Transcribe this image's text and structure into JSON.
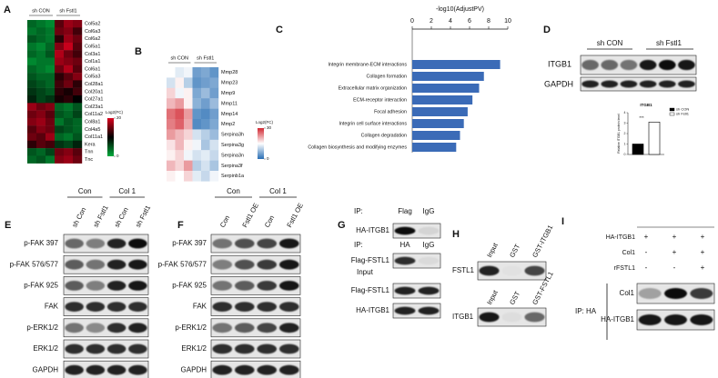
{
  "panel_a": {
    "label": "A",
    "groups": [
      "sh CON",
      "sh Fstl1"
    ],
    "rows": [
      "Col5a2",
      "Col6a3",
      "Col6a2",
      "Col5a1",
      "Col3a1",
      "Col1a1",
      "Col6a1",
      "Col5a3",
      "Col28a1",
      "Col20a1",
      "Col27a1",
      "Col23a1",
      "Col11a2",
      "Col8a1",
      "Col4a5",
      "Col11a1",
      "Kera",
      "Tnn",
      "Tnc"
    ],
    "values": [
      [
        4,
        3,
        2,
        14,
        17,
        16
      ],
      [
        3,
        4,
        3,
        15,
        16,
        13
      ],
      [
        5,
        4,
        3,
        12,
        17,
        15
      ],
      [
        3,
        2,
        4,
        16,
        19,
        14
      ],
      [
        4,
        3,
        5,
        18,
        15,
        13
      ],
      [
        2,
        3,
        3,
        17,
        16,
        15
      ],
      [
        4,
        3,
        2,
        15,
        18,
        14
      ],
      [
        5,
        4,
        4,
        12,
        14,
        16
      ],
      [
        6,
        5,
        4,
        13,
        15,
        12
      ],
      [
        7,
        6,
        5,
        12,
        11,
        13
      ],
      [
        8,
        6,
        7,
        11,
        12,
        10
      ],
      [
        17,
        15,
        16,
        4,
        3,
        5
      ],
      [
        15,
        16,
        14,
        5,
        4,
        6
      ],
      [
        16,
        17,
        15,
        3,
        5,
        4
      ],
      [
        14,
        16,
        15,
        6,
        5,
        4
      ],
      [
        15,
        14,
        17,
        4,
        3,
        5
      ],
      [
        12,
        14,
        13,
        7,
        6,
        8
      ],
      [
        5,
        4,
        6,
        15,
        16,
        14
      ],
      [
        4,
        5,
        3,
        16,
        17,
        15
      ]
    ],
    "colorbar": {
      "title": "Log2(FC)",
      "lim": [
        0,
        20
      ],
      "ticks": [
        20,
        0
      ]
    }
  },
  "panel_b": {
    "label": "B",
    "groups": [
      "sh CON",
      "sh Fstl1"
    ],
    "rows": [
      "Mmp28",
      "Mmp23",
      "Mmp9",
      "Mmp11",
      "Mmp14",
      "Mmp2",
      "Serpina3h",
      "Serpina3g",
      "Serpina3n",
      "Serpina3f",
      "Serpinb1a"
    ],
    "values": [
      [
        15,
        13,
        14,
        5,
        6,
        4
      ],
      [
        12,
        16,
        10,
        4,
        5,
        6
      ],
      [
        18,
        14,
        16,
        6,
        8,
        5
      ],
      [
        20,
        22,
        16,
        7,
        5,
        8
      ],
      [
        25,
        27,
        22,
        4,
        3,
        5
      ],
      [
        24,
        26,
        21,
        3,
        4,
        6
      ],
      [
        22,
        20,
        18,
        12,
        10,
        8
      ],
      [
        17,
        20,
        16,
        14,
        9,
        12
      ],
      [
        16,
        18,
        14,
        12,
        13,
        11
      ],
      [
        20,
        18,
        22,
        10,
        12,
        9
      ],
      [
        16,
        15,
        18,
        13,
        11,
        14
      ]
    ],
    "colorbar": {
      "title": "Log2(FC)",
      "lim": [
        0,
        30
      ],
      "ticks": [
        30,
        0
      ]
    }
  },
  "panel_c": {
    "label": "C",
    "type": "bar",
    "title": "-log10(AdjustPV)",
    "categories": [
      "Integrin membrane-ECM interactions",
      "Collagen formation",
      "Extracellular matrix organization",
      "ECM-receptor interaction",
      "Focal adhesion",
      "Integrin cell surface interactions",
      "Collagen degradation",
      "Collagen biosynthesis and modifying enzymes"
    ],
    "values": [
      9.2,
      7.5,
      7.0,
      6.3,
      5.8,
      5.4,
      5.0,
      4.6
    ],
    "xlim": [
      0,
      10
    ],
    "xticks": [
      0,
      2,
      4,
      6,
      8,
      10
    ],
    "color": "#3b6bb7"
  },
  "panel_d": {
    "label": "D",
    "groups": [
      "sh CON",
      "sh Fstl1"
    ],
    "blot_rows": [
      "ITGB1",
      "GAPDH"
    ],
    "chart": {
      "type": "bar",
      "title": "ITGB1",
      "ylabel": "Relative ITGB1 protein level",
      "annotation": "***",
      "ylim": [
        0,
        4
      ],
      "yticks": [
        0,
        1,
        2,
        3,
        4
      ],
      "series": [
        {
          "name": "sh CON",
          "color": "#000000",
          "values": [
            1.0
          ]
        },
        {
          "name": "sh Fstl1",
          "color": "#ffffff",
          "values": [
            3.1
          ]
        }
      ]
    }
  },
  "panel_e": {
    "label": "E",
    "groups": [
      "Con",
      "Col 1"
    ],
    "lanes": [
      "sh Con",
      "sh Fstl1",
      "sh Con",
      "sh Fstl1"
    ],
    "rows": [
      "p-FAK 397",
      "p-FAK 576/577",
      "p-FAK 925",
      "FAK",
      "p-ERK1/2",
      "ERK1/2",
      "GAPDH"
    ]
  },
  "panel_f": {
    "label": "F",
    "groups": [
      "Con",
      "Col 1"
    ],
    "lanes": [
      "Con",
      "Fstl1 OE",
      "Con",
      "Fstl1 OE"
    ],
    "rows": [
      "p-FAK 397",
      "p-FAK 576/577",
      "p-FAK 925",
      "FAK",
      "p-ERK1/2",
      "ERK1/2",
      "GAPDH"
    ]
  },
  "panel_g": {
    "label": "G",
    "ip_rows": [
      {
        "label": "IP:",
        "lanes": [
          "Flag",
          "IgG"
        ]
      },
      {
        "label": "IP:",
        "lanes": [
          "HA",
          "IgG"
        ]
      }
    ],
    "blots": [
      "HA-ITGB1",
      "Flag-FSTL1",
      "Flag-FSTL1",
      "HA-ITGB1"
    ],
    "input_label": "Input"
  },
  "panel_h": {
    "label": "H",
    "top": {
      "lanes": [
        "Input",
        "GST",
        "GST-ITGB1"
      ],
      "blot": "FSTL1"
    },
    "bottom": {
      "lanes": [
        "Input",
        "GST",
        "GST-FSTL1"
      ],
      "blot": "ITGB1"
    }
  },
  "panel_i": {
    "label": "I",
    "conditions": [
      {
        "name": "HA-ITGB1",
        "signs": [
          "+",
          "+",
          "+"
        ]
      },
      {
        "name": "Col1",
        "signs": [
          "-",
          "+",
          "+"
        ]
      },
      {
        "name": "rFSTL1",
        "signs": [
          "-",
          "-",
          "+"
        ]
      }
    ],
    "ip_label": "IP: HA",
    "blots": [
      "Col1",
      "HA-ITGB1"
    ]
  }
}
